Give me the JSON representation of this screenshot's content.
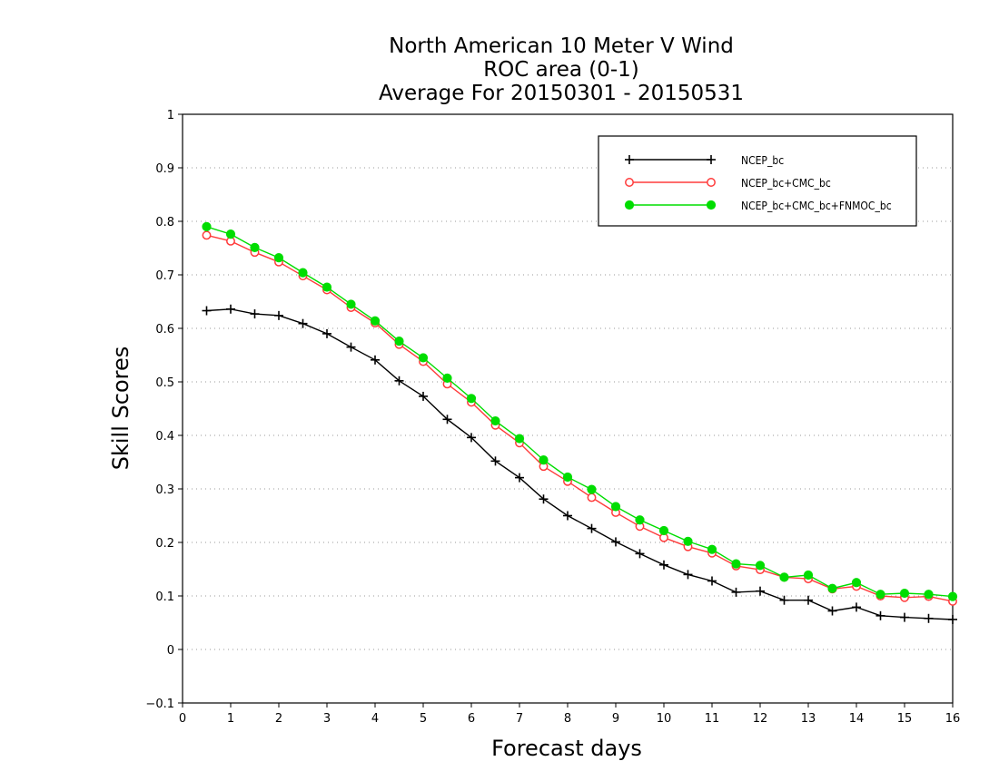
{
  "chart_data": {
    "type": "line",
    "title": [
      "North American 10 Meter V Wind",
      "ROC area (0-1)",
      "Average For 20150301 - 20150531"
    ],
    "xlabel": "Forecast days",
    "ylabel": "Skill Scores",
    "xlim": [
      0,
      16
    ],
    "ylim": [
      -0.1,
      1
    ],
    "xticks": [
      0,
      1,
      2,
      3,
      4,
      5,
      6,
      7,
      8,
      9,
      10,
      11,
      12,
      13,
      14,
      15,
      16
    ],
    "xtick_labels": [
      "0",
      "1",
      "2",
      "3",
      "4",
      "5",
      "6",
      "7",
      "8",
      "9",
      "10",
      "11",
      "12",
      "13",
      "14",
      "15",
      "16"
    ],
    "yticks": [
      -0.1,
      0,
      0.1,
      0.2,
      0.3,
      0.4,
      0.5,
      0.6,
      0.7,
      0.8,
      0.9,
      1
    ],
    "ytick_labels": [
      "−0.1",
      "0",
      "0.1",
      "0.2",
      "0.3",
      "0.4",
      "0.5",
      "0.6",
      "0.7",
      "0.8",
      "0.9",
      "1"
    ],
    "grid": "horizontal dotted",
    "legend_position": "top-right",
    "x": [
      0.5,
      1,
      1.5,
      2,
      2.5,
      3,
      3.5,
      4,
      4.5,
      5,
      5.5,
      6,
      6.5,
      7,
      7.5,
      8,
      8.5,
      9,
      9.5,
      10,
      10.5,
      11,
      11.5,
      12,
      12.5,
      13,
      13.5,
      14,
      14.5,
      15,
      15.5,
      16
    ],
    "series": [
      {
        "name": "NCEP_bc",
        "color": "#000000",
        "marker": "plus",
        "values": [
          0.633,
          0.636,
          0.627,
          0.624,
          0.609,
          0.59,
          0.565,
          0.541,
          0.502,
          0.473,
          0.43,
          0.396,
          0.352,
          0.321,
          0.281,
          0.25,
          0.226,
          0.201,
          0.179,
          0.158,
          0.14,
          0.128,
          0.107,
          0.109,
          0.092,
          0.092,
          0.072,
          0.079,
          0.063,
          0.06,
          0.058,
          0.056
        ]
      },
      {
        "name": "NCEP_bc+CMC_bc",
        "color": "#ff3b3b",
        "marker": "open-circle",
        "values": [
          0.774,
          0.763,
          0.742,
          0.724,
          0.698,
          0.672,
          0.639,
          0.61,
          0.57,
          0.538,
          0.496,
          0.462,
          0.419,
          0.386,
          0.342,
          0.314,
          0.284,
          0.256,
          0.23,
          0.209,
          0.192,
          0.18,
          0.156,
          0.149,
          0.135,
          0.132,
          0.113,
          0.118,
          0.1,
          0.097,
          0.099,
          0.09
        ]
      },
      {
        "name": "NCEP_bc+CMC_bc+FNMOC_bc",
        "color": "#00dd00",
        "marker": "filled-circle",
        "values": [
          0.79,
          0.776,
          0.751,
          0.732,
          0.704,
          0.677,
          0.645,
          0.614,
          0.576,
          0.545,
          0.507,
          0.469,
          0.427,
          0.394,
          0.354,
          0.322,
          0.299,
          0.267,
          0.242,
          0.222,
          0.202,
          0.187,
          0.16,
          0.157,
          0.135,
          0.139,
          0.114,
          0.125,
          0.103,
          0.105,
          0.103,
          0.099
        ]
      }
    ]
  }
}
